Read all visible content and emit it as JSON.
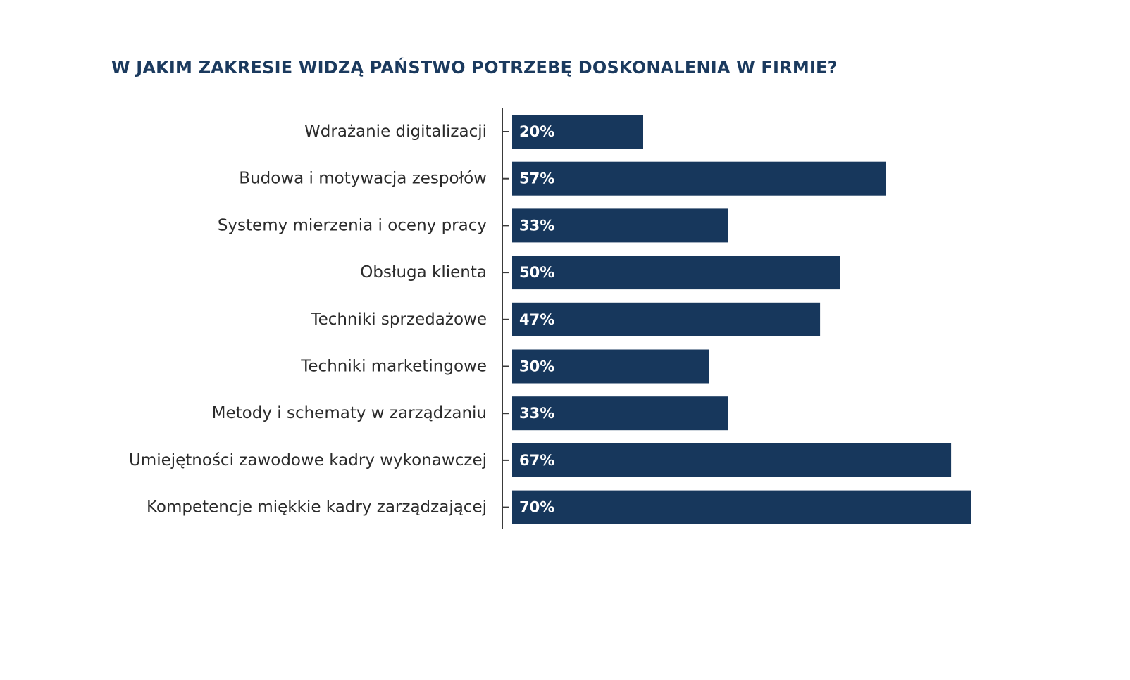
{
  "chart_data": {
    "type": "bar",
    "orientation": "horizontal",
    "title": "W JAKIM ZAKRESIE WIDZĄ PAŃSTWO POTRZEBĘ DOSKONALENIA W FIRMIE?",
    "categories": [
      "Wdrażanie digitalizacji",
      "Budowa i motywacja zespołów",
      "Systemy mierzenia i oceny pracy",
      "Obsługa klienta",
      "Techniki sprzedażowe",
      "Techniki marketingowe",
      "Metody i schematy w zarządzaniu",
      "Umiejętności zawodowe kadry wykonawczej",
      "Kompetencje miękkie kadry zarządzającej"
    ],
    "values": [
      20,
      57,
      33,
      50,
      47,
      30,
      33,
      67,
      70
    ],
    "value_labels": [
      "20%",
      "57%",
      "33%",
      "50%",
      "47%",
      "30%",
      "33%",
      "67%",
      "70%"
    ],
    "unit": "%",
    "grid": false,
    "legend": "none",
    "colors": {
      "bar": "#17375c",
      "title": "#1b3a5e",
      "label": "#2b2b2b",
      "axis": "#3a3a3a",
      "value_text": "#ffffff"
    }
  }
}
